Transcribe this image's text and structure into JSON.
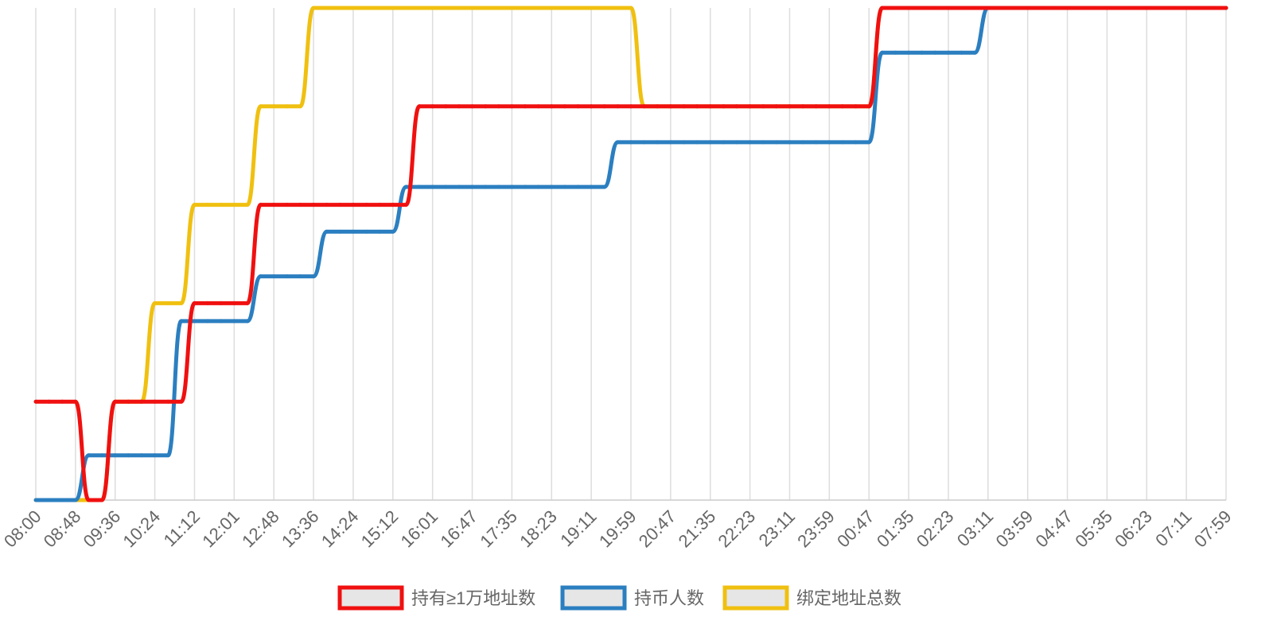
{
  "chart_data": {
    "type": "line",
    "categories": [
      "08:00",
      null,
      null,
      "08:48",
      null,
      null,
      "09:36",
      null,
      null,
      "10:24",
      null,
      null,
      "11:12",
      null,
      null,
      "12:01",
      null,
      null,
      "12:48",
      null,
      null,
      "13:36",
      null,
      null,
      "14:24",
      null,
      null,
      "15:12",
      null,
      null,
      "16:01",
      null,
      null,
      "16:47",
      null,
      null,
      "17:35",
      null,
      null,
      "18:23",
      null,
      null,
      "19:11",
      null,
      null,
      "19:59",
      null,
      null,
      "20:47",
      null,
      null,
      "21:35",
      null,
      null,
      "22:23",
      null,
      null,
      "23:11",
      null,
      null,
      "23:59",
      null,
      null,
      "00:47",
      null,
      null,
      "01:35",
      null,
      null,
      "02:23",
      null,
      null,
      "03:11",
      null,
      null,
      "03:59",
      null,
      null,
      "04:47",
      null,
      null,
      "05:35",
      null,
      null,
      "06:23",
      null,
      null,
      "07:11",
      null,
      null,
      "07:59"
    ],
    "ylim": [
      0,
      11
    ],
    "grid": true,
    "legend": "bottom",
    "series": [
      {
        "name": "持有≥1万地址数",
        "color": "#f01010",
        "values": [
          2.2,
          2.2,
          2.2,
          2.2,
          0,
          0,
          2.2,
          2.2,
          2.2,
          2.2,
          2.2,
          2.2,
          4.4,
          4.4,
          4.4,
          4.4,
          4.4,
          6.6,
          6.6,
          6.6,
          6.6,
          6.6,
          6.6,
          6.6,
          6.6,
          6.6,
          6.6,
          6.6,
          6.6,
          8.8,
          8.8,
          8.8,
          8.8,
          8.8,
          8.8,
          8.8,
          8.8,
          8.8,
          8.8,
          8.8,
          8.8,
          8.8,
          8.8,
          8.8,
          8.8,
          8.8,
          8.8,
          8.8,
          8.8,
          8.8,
          8.8,
          8.8,
          8.8,
          8.8,
          8.8,
          8.8,
          8.8,
          8.8,
          8.8,
          8.8,
          8.8,
          8.8,
          8.8,
          8.8,
          11,
          11,
          11,
          11,
          11,
          11,
          11,
          11,
          11,
          11,
          11,
          11,
          11,
          11,
          11,
          11,
          11,
          11,
          11,
          11,
          11,
          11,
          11,
          11,
          11,
          11,
          11
        ]
      },
      {
        "name": "持币人数",
        "color": "#2b7fc0",
        "values": [
          0,
          0,
          0,
          0,
          1,
          1,
          1,
          1,
          1,
          1,
          1,
          4,
          4,
          4,
          4,
          4,
          4,
          5,
          5,
          5,
          5,
          5,
          6,
          6,
          6,
          6,
          6,
          6,
          7,
          7,
          7,
          7,
          7,
          7,
          7,
          7,
          7,
          7,
          7,
          7,
          7,
          7,
          7,
          7,
          8,
          8,
          8,
          8,
          8,
          8,
          8,
          8,
          8,
          8,
          8,
          8,
          8,
          8,
          8,
          8,
          8,
          8,
          8,
          8,
          10,
          10,
          10,
          10,
          10,
          10,
          10,
          10,
          11,
          11,
          11,
          11,
          11,
          11,
          11,
          11,
          11,
          11,
          11,
          11,
          11,
          11,
          11,
          11,
          11,
          11,
          11
        ]
      },
      {
        "name": "绑定地址总数",
        "color": "#f0c010",
        "values": [
          0,
          0,
          0,
          0,
          0,
          0,
          2.2,
          2.2,
          2.2,
          4.4,
          4.4,
          4.4,
          6.6,
          6.6,
          6.6,
          6.6,
          6.6,
          8.8,
          8.8,
          8.8,
          8.8,
          11,
          11,
          11,
          11,
          11,
          11,
          11,
          11,
          11,
          11,
          11,
          11,
          11,
          11,
          11,
          11,
          11,
          11,
          11,
          11,
          11,
          11,
          11,
          11,
          11,
          8.8,
          8.8,
          8.8,
          8.8,
          8.8,
          8.8,
          8.8,
          8.8,
          8.8,
          8.8,
          8.8,
          8.8,
          8.8,
          8.8,
          8.8,
          8.8,
          8.8,
          8.8,
          11,
          11,
          11,
          11,
          11,
          11,
          11,
          11,
          11,
          11,
          11,
          11,
          11,
          11,
          11,
          11,
          11,
          11,
          11,
          11,
          11,
          11,
          11,
          11,
          11,
          11,
          11
        ]
      }
    ]
  }
}
